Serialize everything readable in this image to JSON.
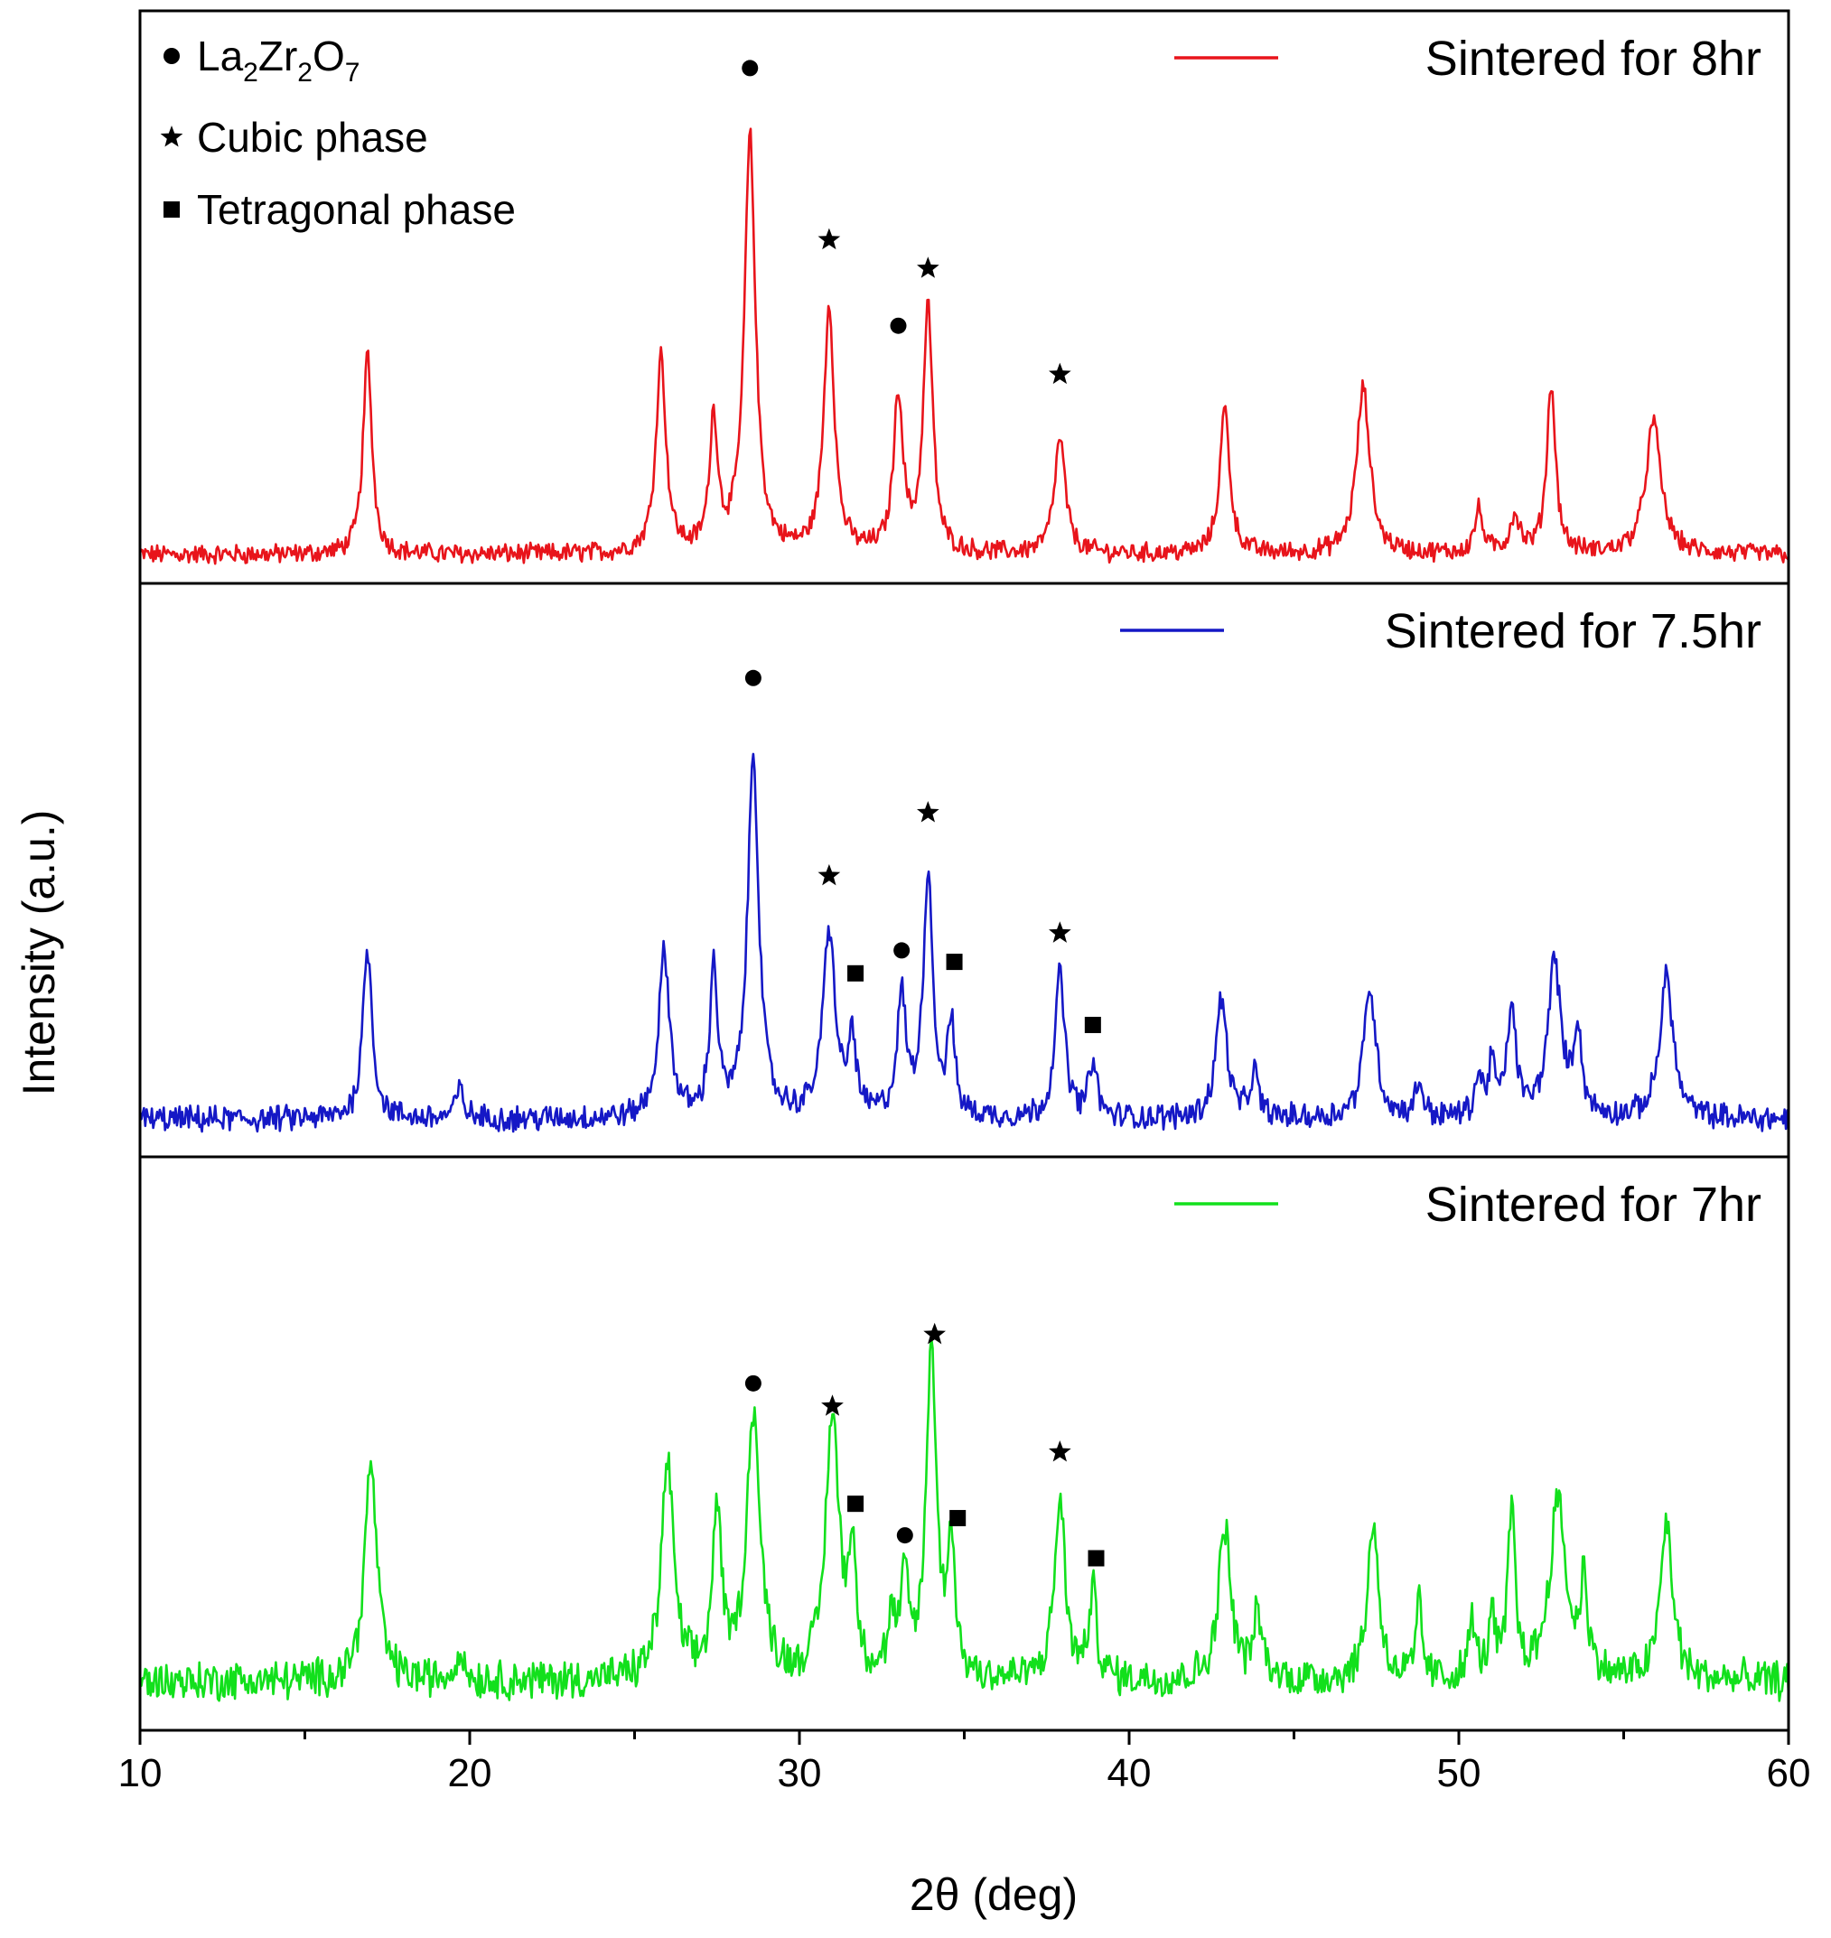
{
  "chart_data": {
    "type": "line",
    "title": "",
    "xlabel": "2θ (deg)",
    "ylabel": "Intensity (a.u.)",
    "xlim": [
      10,
      60
    ],
    "xticks": [
      "10",
      "20",
      "30",
      "40",
      "50",
      "60"
    ],
    "colors": {
      "red": "#e8141b",
      "blue": "#1518c6",
      "green": "#12e01c",
      "axis": "#000000"
    },
    "phase_legend": [
      {
        "marker": "circle",
        "label_main": "La",
        "sub1": "2",
        "label_mid": "Zr",
        "sub2": "2",
        "label_end": "O",
        "sub3": "7"
      },
      {
        "marker": "star",
        "label": "Cubic phase"
      },
      {
        "marker": "square",
        "label": "Tetragonal phase"
      }
    ],
    "series": [
      {
        "name": "Sintered for 8hr",
        "color": "#e8141b",
        "baseline": 0.1,
        "noise": 0.03,
        "peaks": [
          {
            "x": 16.9,
            "h": 0.7,
            "w": 0.16
          },
          {
            "x": 25.8,
            "h": 0.69,
            "w": 0.18
          },
          {
            "x": 27.4,
            "h": 0.46,
            "w": 0.15
          },
          {
            "x": 28.5,
            "h": 1.45,
            "w": 0.2
          },
          {
            "x": 30.9,
            "h": 0.86,
            "w": 0.19
          },
          {
            "x": 33.0,
            "h": 0.55,
            "w": 0.17
          },
          {
            "x": 33.9,
            "h": 0.86,
            "w": 0.17
          },
          {
            "x": 37.9,
            "h": 0.4,
            "w": 0.2
          },
          {
            "x": 42.9,
            "h": 0.51,
            "w": 0.18
          },
          {
            "x": 47.1,
            "h": 0.58,
            "w": 0.24
          },
          {
            "x": 50.6,
            "h": 0.15,
            "w": 0.15
          },
          {
            "x": 51.7,
            "h": 0.13,
            "w": 0.18
          },
          {
            "x": 52.8,
            "h": 0.59,
            "w": 0.16
          },
          {
            "x": 55.9,
            "h": 0.46,
            "w": 0.28
          }
        ],
        "markers": [
          {
            "type": "circle",
            "x": 28.5,
            "y": 1.8
          },
          {
            "type": "star",
            "x": 30.9,
            "y": 1.2
          },
          {
            "type": "circle",
            "x": 33.0,
            "y": 0.9
          },
          {
            "type": "star",
            "x": 33.9,
            "y": 1.1
          },
          {
            "type": "star",
            "x": 37.9,
            "y": 0.73
          }
        ]
      },
      {
        "name": "Sintered for 7.5hr",
        "color": "#1518c6",
        "baseline": 0.13,
        "noise": 0.04,
        "peaks": [
          {
            "x": 16.9,
            "h": 0.6,
            "w": 0.17
          },
          {
            "x": 19.7,
            "h": 0.1,
            "w": 0.15
          },
          {
            "x": 25.9,
            "h": 0.57,
            "w": 0.2
          },
          {
            "x": 27.4,
            "h": 0.52,
            "w": 0.14
          },
          {
            "x": 28.6,
            "h": 1.27,
            "w": 0.2
          },
          {
            "x": 30.9,
            "h": 0.65,
            "w": 0.22
          },
          {
            "x": 31.6,
            "h": 0.27,
            "w": 0.13
          },
          {
            "x": 33.1,
            "h": 0.41,
            "w": 0.16
          },
          {
            "x": 33.9,
            "h": 0.85,
            "w": 0.17
          },
          {
            "x": 34.6,
            "h": 0.32,
            "w": 0.13
          },
          {
            "x": 37.9,
            "h": 0.5,
            "w": 0.18
          },
          {
            "x": 38.9,
            "h": 0.2,
            "w": 0.14
          },
          {
            "x": 42.8,
            "h": 0.42,
            "w": 0.2
          },
          {
            "x": 43.8,
            "h": 0.15,
            "w": 0.15
          },
          {
            "x": 47.3,
            "h": 0.46,
            "w": 0.22
          },
          {
            "x": 48.8,
            "h": 0.12,
            "w": 0.14
          },
          {
            "x": 50.6,
            "h": 0.13,
            "w": 0.14
          },
          {
            "x": 51.6,
            "h": 0.38,
            "w": 0.16
          },
          {
            "x": 52.9,
            "h": 0.54,
            "w": 0.24
          },
          {
            "x": 53.6,
            "h": 0.3,
            "w": 0.14
          },
          {
            "x": 56.3,
            "h": 0.5,
            "w": 0.24
          },
          {
            "x": 51.0,
            "h": 0.18,
            "w": 0.12
          }
        ],
        "markers": [
          {
            "type": "circle",
            "x": 28.6,
            "y": 1.67
          },
          {
            "type": "star",
            "x": 30.9,
            "y": 0.98
          },
          {
            "type": "square",
            "x": 31.7,
            "y": 0.64
          },
          {
            "type": "circle",
            "x": 33.1,
            "y": 0.72
          },
          {
            "type": "star",
            "x": 33.9,
            "y": 1.2
          },
          {
            "type": "square",
            "x": 34.7,
            "y": 0.68
          },
          {
            "type": "star",
            "x": 37.9,
            "y": 0.78
          },
          {
            "type": "square",
            "x": 38.9,
            "y": 0.46
          }
        ]
      },
      {
        "name": "Sintered for 7hr",
        "color": "#12e01c",
        "baseline": 0.17,
        "noise": 0.06,
        "peaks": [
          {
            "x": 17.0,
            "h": 0.76,
            "w": 0.22
          },
          {
            "x": 19.7,
            "h": 0.1,
            "w": 0.15
          },
          {
            "x": 26.0,
            "h": 0.76,
            "w": 0.22
          },
          {
            "x": 27.5,
            "h": 0.58,
            "w": 0.16
          },
          {
            "x": 28.6,
            "h": 0.93,
            "w": 0.24
          },
          {
            "x": 31.0,
            "h": 0.92,
            "w": 0.24
          },
          {
            "x": 31.6,
            "h": 0.42,
            "w": 0.13
          },
          {
            "x": 32.8,
            "h": 0.18,
            "w": 0.13
          },
          {
            "x": 33.2,
            "h": 0.32,
            "w": 0.14
          },
          {
            "x": 34.0,
            "h": 1.16,
            "w": 0.18
          },
          {
            "x": 34.6,
            "h": 0.48,
            "w": 0.13
          },
          {
            "x": 37.9,
            "h": 0.63,
            "w": 0.19
          },
          {
            "x": 38.9,
            "h": 0.3,
            "w": 0.14
          },
          {
            "x": 42.9,
            "h": 0.54,
            "w": 0.22
          },
          {
            "x": 43.9,
            "h": 0.22,
            "w": 0.16
          },
          {
            "x": 47.4,
            "h": 0.55,
            "w": 0.2
          },
          {
            "x": 48.8,
            "h": 0.27,
            "w": 0.1
          },
          {
            "x": 50.4,
            "h": 0.2,
            "w": 0.12
          },
          {
            "x": 51.0,
            "h": 0.2,
            "w": 0.12
          },
          {
            "x": 51.6,
            "h": 0.58,
            "w": 0.13
          },
          {
            "x": 53.0,
            "h": 0.62,
            "w": 0.3
          },
          {
            "x": 53.8,
            "h": 0.34,
            "w": 0.12
          },
          {
            "x": 56.3,
            "h": 0.55,
            "w": 0.22
          }
        ],
        "markers": [
          {
            "type": "circle",
            "x": 28.6,
            "y": 1.21
          },
          {
            "type": "star",
            "x": 31.0,
            "y": 1.13
          },
          {
            "type": "square",
            "x": 31.7,
            "y": 0.79
          },
          {
            "type": "circle",
            "x": 33.2,
            "y": 0.68
          },
          {
            "type": "star",
            "x": 34.1,
            "y": 1.38
          },
          {
            "type": "square",
            "x": 34.8,
            "y": 0.74
          },
          {
            "type": "star",
            "x": 37.9,
            "y": 0.97
          },
          {
            "type": "square",
            "x": 39.0,
            "y": 0.6
          }
        ]
      }
    ]
  }
}
